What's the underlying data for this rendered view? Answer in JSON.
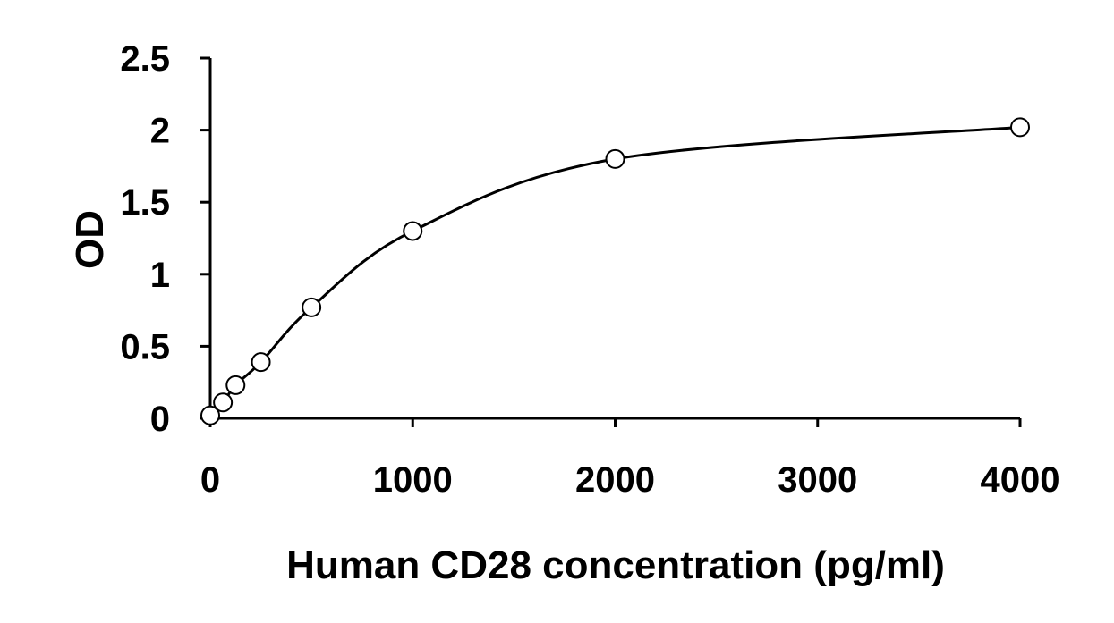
{
  "chart_data": {
    "type": "scatter",
    "title": "",
    "xlabel": "Human CD28 concentration (pg/ml)",
    "ylabel": "OD",
    "xlim": [
      0,
      4000
    ],
    "ylim": [
      0,
      2.5
    ],
    "x_ticks": [
      0,
      1000,
      2000,
      3000,
      4000
    ],
    "x_tick_labels": [
      "0",
      "1000",
      "2000",
      "3000",
      "4000"
    ],
    "y_ticks": [
      0,
      0.5,
      1,
      1.5,
      2,
      2.5
    ],
    "y_tick_labels": [
      "0",
      "0.5",
      "1",
      "1.5",
      "2",
      "2.5"
    ],
    "grid": false,
    "legend": "none",
    "series": [
      {
        "x": [
          0,
          62.5,
          125,
          250,
          500,
          1000,
          2000,
          4000
        ],
        "y": [
          0.02,
          0.11,
          0.23,
          0.39,
          0.77,
          1.3,
          1.8,
          2.02
        ],
        "marker": "open-circle",
        "line": "smooth"
      }
    ],
    "colors": {
      "line": "#000000",
      "marker_stroke": "#000000",
      "marker_fill": "#ffffff"
    }
  }
}
